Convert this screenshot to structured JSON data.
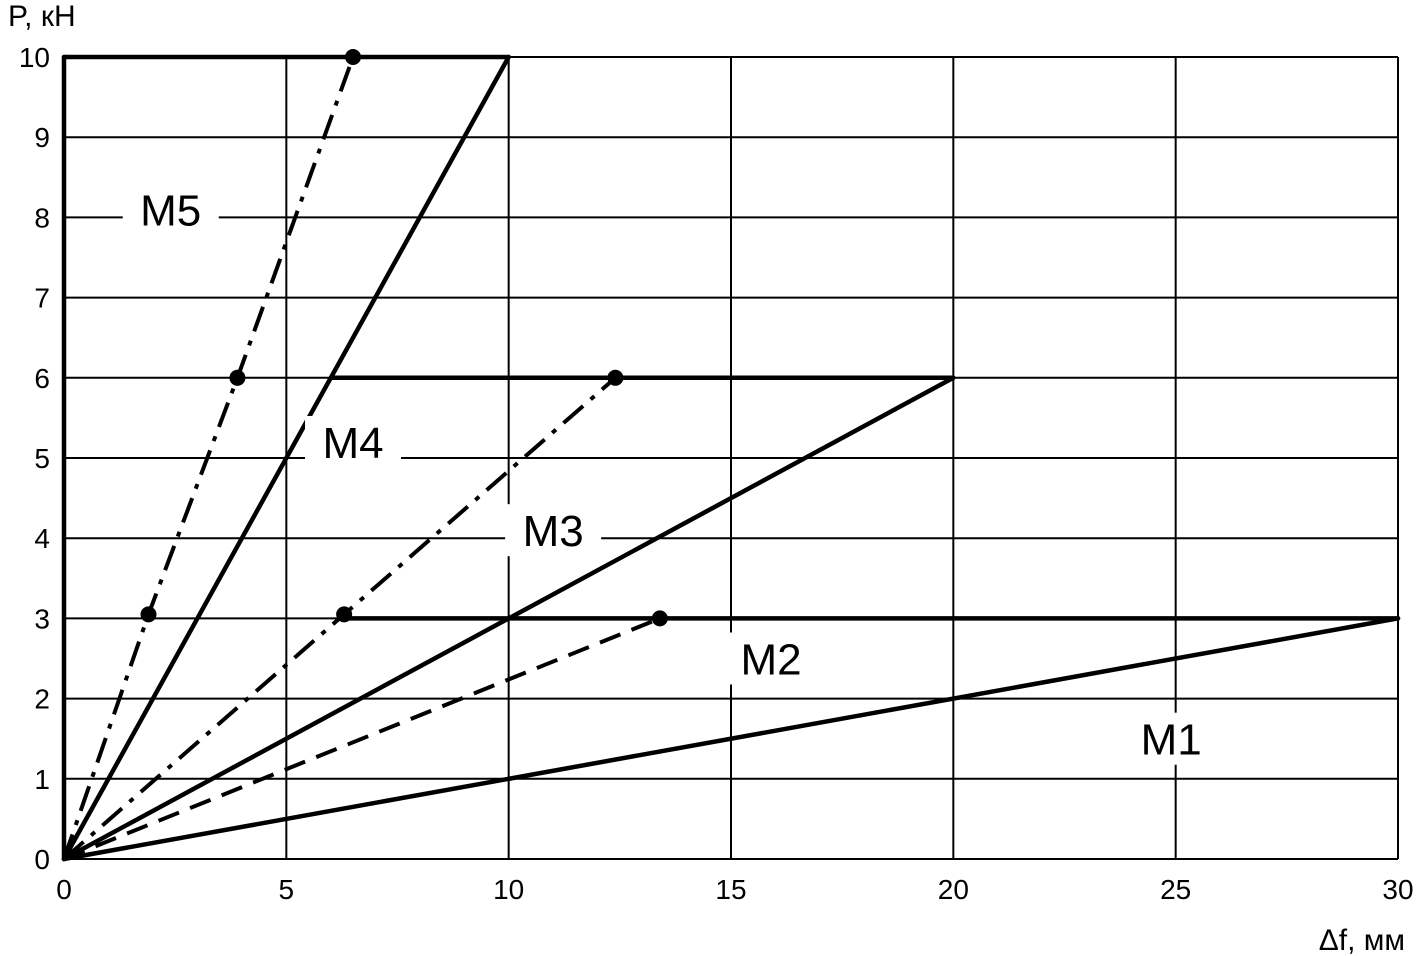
{
  "chart_data": {
    "type": "line",
    "xlabel": "Δf, мм",
    "ylabel": "P, кН",
    "xlim": [
      0,
      30
    ],
    "ylim": [
      0,
      10
    ],
    "x_ticks": [
      0,
      5,
      10,
      15,
      20,
      25,
      30
    ],
    "y_ticks": [
      0,
      1,
      2,
      3,
      4,
      5,
      6,
      7,
      8,
      9,
      10
    ],
    "grid": true,
    "boundaries": [
      {
        "label": "M1",
        "points": [
          [
            0,
            0
          ],
          [
            30,
            3
          ]
        ]
      },
      {
        "label": "M2",
        "points": [
          [
            0,
            0
          ],
          [
            20,
            6
          ]
        ]
      },
      {
        "label": "M3",
        "points": [
          [
            0,
            0
          ],
          [
            10,
            10
          ]
        ]
      },
      {
        "label": "M4",
        "points": [
          [
            0,
            0
          ],
          [
            0,
            10
          ]
        ]
      },
      {
        "points": [
          [
            6.2,
            3
          ],
          [
            30,
            3
          ]
        ]
      },
      {
        "points": [
          [
            6,
            6
          ],
          [
            20,
            6
          ]
        ]
      },
      {
        "points": [
          [
            0,
            10
          ],
          [
            10,
            10
          ]
        ]
      }
    ],
    "series": [
      {
        "style": "dashed",
        "points": [
          [
            0,
            0
          ],
          [
            13.4,
            3
          ]
        ],
        "markers": [
          [
            13.4,
            3
          ]
        ]
      },
      {
        "style": "dash-dot",
        "points": [
          [
            0,
            0
          ],
          [
            6.3,
            3.05
          ],
          [
            12.4,
            6
          ]
        ],
        "markers": [
          [
            6.3,
            3.05
          ],
          [
            12.4,
            6
          ]
        ]
      },
      {
        "style": "dash-dot",
        "points": [
          [
            0,
            0
          ],
          [
            1.9,
            3.05
          ],
          [
            3.9,
            6
          ],
          [
            6.5,
            10
          ]
        ],
        "markers": [
          [
            1.9,
            3.05
          ],
          [
            3.9,
            6
          ],
          [
            6.5,
            10
          ]
        ]
      }
    ],
    "zone_labels": [
      {
        "text": "M1",
        "x": 24.9,
        "y": 1.5
      },
      {
        "text": "M2",
        "x": 15.9,
        "y": 2.5
      },
      {
        "text": "M3",
        "x": 11.0,
        "y": 4.1
      },
      {
        "text": "M4",
        "x": 6.5,
        "y": 5.2
      },
      {
        "text": "M5",
        "x": 2.4,
        "y": 8.1
      }
    ]
  }
}
